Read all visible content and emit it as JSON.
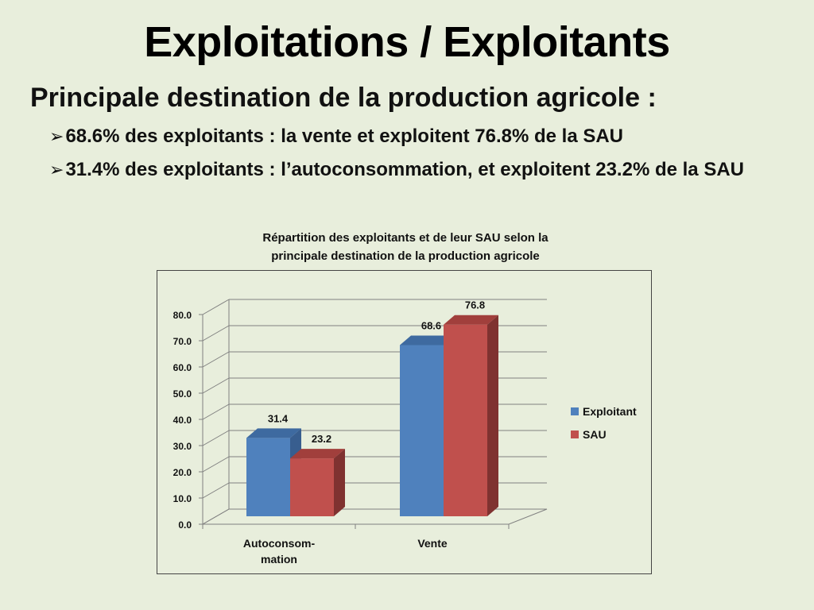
{
  "slide": {
    "title": "Exploitations / Exploitants",
    "subtitle": "Principale destination de la production agricole :",
    "bullets": [
      {
        "arrow": "➢",
        "text": "68.6% des exploitants : la vente et exploitent 76.8% de la SAU"
      },
      {
        "arrow": "➢",
        "text": "31.4% des exploitants : l’autoconsommation, et exploitent 23.2% de la SAU"
      }
    ]
  },
  "chart_data": {
    "type": "bar",
    "title_line1": "Répartition des exploitants et de leur SAU selon la",
    "title_line2": "principale destination de la production agricole",
    "categories": [
      {
        "line1": "Autoconsom-",
        "line2": "mation"
      },
      {
        "line1": "Vente",
        "line2": ""
      }
    ],
    "series": [
      {
        "name": "Exploitant",
        "values": [
          31.4,
          68.6
        ],
        "labels": [
          "31.4",
          "68.6"
        ],
        "color": "#4f81bd",
        "top": "#3e6aa0",
        "side": "#385e8f"
      },
      {
        "name": "SAU",
        "values": [
          23.2,
          76.8
        ],
        "labels": [
          "23.2",
          "76.8"
        ],
        "color": "#c0504d",
        "top": "#a13f3c",
        "side": "#7f3230"
      }
    ],
    "ylim": [
      0,
      80
    ],
    "yticks": [
      "0.0",
      "10.0",
      "20.0",
      "30.0",
      "40.0",
      "50.0",
      "60.0",
      "70.0",
      "80.0"
    ],
    "grid": true,
    "legend": "right"
  }
}
